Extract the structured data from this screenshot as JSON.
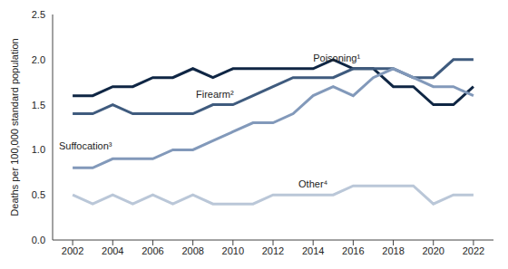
{
  "chart_data": {
    "type": "line",
    "y_label": "Deaths per 100,000 standard population",
    "x": [
      2002,
      2003,
      2004,
      2005,
      2006,
      2007,
      2008,
      2009,
      2010,
      2011,
      2012,
      2013,
      2014,
      2015,
      2016,
      2017,
      2018,
      2019,
      2020,
      2021,
      2022
    ],
    "xlim": [
      2001,
      2023
    ],
    "xticks": [
      2002,
      2004,
      2006,
      2008,
      2010,
      2012,
      2014,
      2016,
      2018,
      2020,
      2022
    ],
    "ylim": [
      0,
      2.5
    ],
    "yticks": [
      {
        "value": 0,
        "label": "0.0"
      },
      {
        "value": 0.5,
        "label": "0.5"
      },
      {
        "value": 1,
        "label": "1.0"
      },
      {
        "value": 1.5,
        "label": "1.5"
      },
      {
        "value": 2,
        "label": "2.0"
      },
      {
        "value": 2.5,
        "label": "2.5"
      }
    ],
    "grid": false,
    "series": [
      {
        "name": "Poisoning¹",
        "color": "#0f2644",
        "values": [
          1.6,
          1.6,
          1.7,
          1.7,
          1.8,
          1.8,
          1.9,
          1.8,
          1.9,
          1.9,
          1.9,
          1.9,
          1.9,
          2.0,
          1.9,
          1.9,
          1.7,
          1.7,
          1.5,
          1.5,
          1.7
        ]
      },
      {
        "name": "Firearm²",
        "color": "#3f5b7e",
        "values": [
          1.4,
          1.4,
          1.5,
          1.4,
          1.4,
          1.4,
          1.4,
          1.5,
          1.5,
          1.6,
          1.7,
          1.8,
          1.8,
          1.8,
          1.9,
          1.9,
          1.9,
          1.8,
          1.8,
          2.0,
          2.0
        ]
      },
      {
        "name": "Suffocation³",
        "color": "#8299ba",
        "values": [
          0.8,
          0.8,
          0.9,
          0.9,
          0.9,
          1.0,
          1.0,
          1.1,
          1.2,
          1.3,
          1.3,
          1.4,
          1.6,
          1.7,
          1.6,
          1.8,
          1.9,
          1.8,
          1.7,
          1.7,
          1.6
        ]
      },
      {
        "name": "Other⁴",
        "color": "#bac7d8",
        "values": [
          0.5,
          0.4,
          0.5,
          0.4,
          0.5,
          0.4,
          0.5,
          0.4,
          0.4,
          0.4,
          0.5,
          0.5,
          0.5,
          0.5,
          0.6,
          0.6,
          0.6,
          0.6,
          0.4,
          0.5,
          0.5
        ]
      }
    ]
  }
}
